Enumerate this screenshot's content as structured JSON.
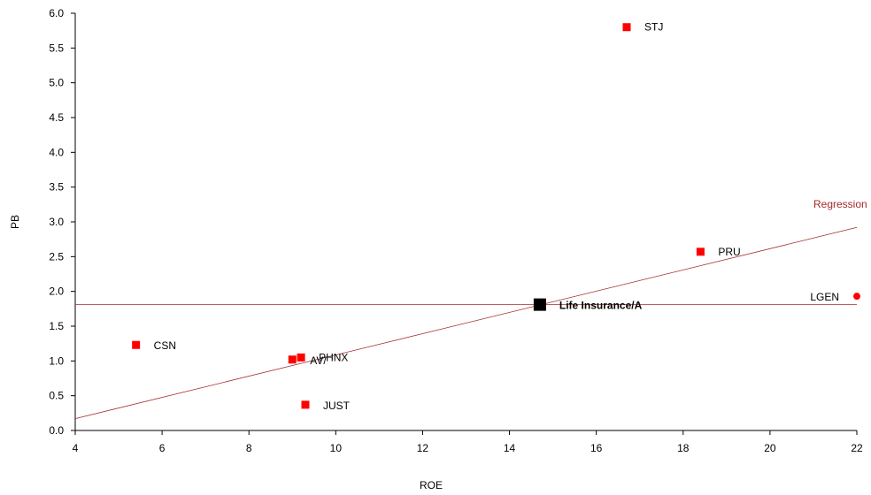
{
  "chart_data": {
    "type": "scatter",
    "xlabel": "ROE",
    "ylabel": "PB",
    "xlim": [
      4,
      22
    ],
    "ylim": [
      0,
      6
    ],
    "x_ticks": [
      "4",
      "6",
      "8",
      "10",
      "12",
      "14",
      "16",
      "18",
      "20",
      "22"
    ],
    "y_ticks": [
      "0.0",
      "0.5",
      "1.0",
      "1.5",
      "2.0",
      "2.5",
      "3.0",
      "3.5",
      "4.0",
      "4.5",
      "5.0",
      "5.5",
      "6.0"
    ],
    "grid": false,
    "points": [
      {
        "label": "STJ",
        "x": 16.7,
        "y": 5.8,
        "marker": "square"
      },
      {
        "label": "PRU",
        "x": 18.4,
        "y": 2.57,
        "marker": "square"
      },
      {
        "label": "LGEN",
        "x": 22.0,
        "y": 1.93,
        "marker": "circle"
      },
      {
        "label": "Life Insurance/A",
        "x": 14.7,
        "y": 1.81,
        "marker": "square-large",
        "highlight": true
      },
      {
        "label": "CSN",
        "x": 5.4,
        "y": 1.23,
        "marker": "square"
      },
      {
        "label": "PHNX",
        "x": 9.2,
        "y": 1.05,
        "marker": "square"
      },
      {
        "label": "AV/",
        "x": 9.0,
        "y": 1.02,
        "marker": "square"
      },
      {
        "label": "JUST",
        "x": 9.3,
        "y": 0.37,
        "marker": "square"
      }
    ],
    "regression": {
      "label": "Regression",
      "x": [
        4,
        22
      ],
      "y": [
        0.17,
        2.92
      ]
    },
    "reference_line": {
      "y": 1.81
    }
  },
  "colors": {
    "point": "#ff0000",
    "highlight": "#000000",
    "regression": "#a52a2a",
    "axis": "#000000"
  }
}
